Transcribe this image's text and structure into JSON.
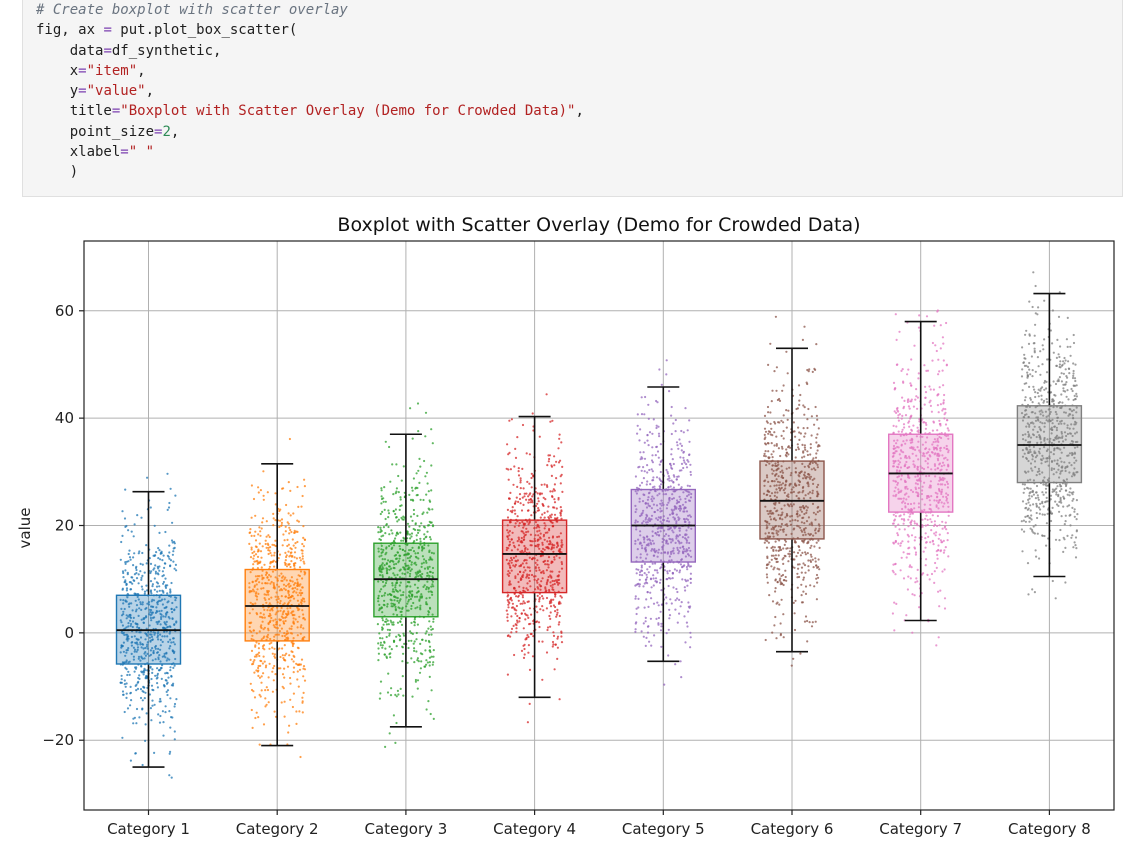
{
  "code_cell": {
    "lines": [
      [
        {
          "t": "# Create boxplot with scatter overlay",
          "c": "comment"
        }
      ],
      [
        {
          "t": "fig, ax ",
          "c": "plain"
        },
        {
          "t": "=",
          "c": "eq"
        },
        {
          "t": " put.plot_box_scatter(",
          "c": "plain"
        }
      ],
      [
        {
          "t": "    data",
          "c": "plain"
        },
        {
          "t": "=",
          "c": "eq"
        },
        {
          "t": "df_synthetic,",
          "c": "plain"
        }
      ],
      [
        {
          "t": "    x",
          "c": "plain"
        },
        {
          "t": "=",
          "c": "eq"
        },
        {
          "t": "\"item\"",
          "c": "string"
        },
        {
          "t": ",",
          "c": "plain"
        }
      ],
      [
        {
          "t": "    y",
          "c": "plain"
        },
        {
          "t": "=",
          "c": "eq"
        },
        {
          "t": "\"value\"",
          "c": "string"
        },
        {
          "t": ",",
          "c": "plain"
        }
      ],
      [
        {
          "t": "    title",
          "c": "plain"
        },
        {
          "t": "=",
          "c": "eq"
        },
        {
          "t": "\"Boxplot with Scatter Overlay (Demo for Crowded Data)\"",
          "c": "string"
        },
        {
          "t": ",",
          "c": "plain"
        }
      ],
      [
        {
          "t": "    point_size",
          "c": "plain"
        },
        {
          "t": "=",
          "c": "eq"
        },
        {
          "t": "2",
          "c": "number"
        },
        {
          "t": ",",
          "c": "plain"
        }
      ],
      [
        {
          "t": "    xlabel",
          "c": "plain"
        },
        {
          "t": "=",
          "c": "eq"
        },
        {
          "t": "\" \"",
          "c": "string"
        }
      ],
      [
        {
          "t": "    )",
          "c": "plain"
        }
      ]
    ]
  },
  "chart_data": {
    "type": "box",
    "title": "Boxplot with Scatter Overlay (Demo for Crowded Data)",
    "xlabel": "",
    "ylabel": "value",
    "ylim": [
      -33,
      73
    ],
    "yticks": [
      -20,
      0,
      20,
      40,
      60
    ],
    "grid": true,
    "categories": [
      "Category 1",
      "Category 2",
      "Category 3",
      "Category 4",
      "Category 5",
      "Category 6",
      "Category 7",
      "Category 8"
    ],
    "boxes": [
      {
        "whisker_low": -25,
        "q1": -5.8,
        "median": 0.5,
        "q3": 7,
        "whisker_high": 26.3,
        "color": "#1f77b4"
      },
      {
        "whisker_low": -21,
        "q1": -1.5,
        "median": 5,
        "q3": 11.8,
        "whisker_high": 31.5,
        "color": "#ff7f0e"
      },
      {
        "whisker_low": -17.5,
        "q1": 3,
        "median": 10,
        "q3": 16.7,
        "whisker_high": 37,
        "color": "#2ca02c"
      },
      {
        "whisker_low": -12,
        "q1": 7.5,
        "median": 14.7,
        "q3": 21,
        "whisker_high": 40.3,
        "color": "#d62728"
      },
      {
        "whisker_low": -5.3,
        "q1": 13.2,
        "median": 20,
        "q3": 26.7,
        "whisker_high": 45.8,
        "color": "#9467bd"
      },
      {
        "whisker_low": -3.5,
        "q1": 17.5,
        "median": 24.6,
        "q3": 32,
        "whisker_high": 53,
        "color": "#8c564b"
      },
      {
        "whisker_low": 2.3,
        "q1": 22.5,
        "median": 29.7,
        "q3": 37,
        "whisker_high": 58,
        "color": "#e377c2"
      },
      {
        "whisker_low": 10.5,
        "q1": 28,
        "median": 35,
        "q3": 42.3,
        "whisker_high": 63.2,
        "color": "#7f7f7f"
      }
    ],
    "points_per_category": 700
  }
}
